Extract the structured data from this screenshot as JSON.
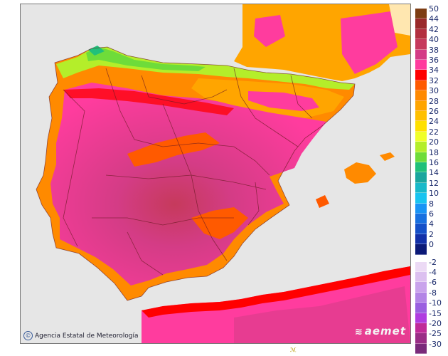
{
  "credit": {
    "text": "Agencia Estatal de Meteorología",
    "symbol": "©"
  },
  "brand": {
    "text": "aemet",
    "icon": "aemet-swirl-icon"
  },
  "sea_color": "#e6e6e6",
  "legend": {
    "warm": [
      {
        "label": "50",
        "color": "#7d3d13"
      },
      {
        "label": "44",
        "color": "#9a2a2a"
      },
      {
        "label": "42",
        "color": "#b3303f"
      },
      {
        "label": "40",
        "color": "#c63a5c"
      },
      {
        "label": "38",
        "color": "#d43c86"
      },
      {
        "label": "36",
        "color": "#ff3c9e"
      },
      {
        "label": "34",
        "color": "#ff0000"
      },
      {
        "label": "32",
        "color": "#ff5a00"
      },
      {
        "label": "30",
        "color": "#ff8a00"
      },
      {
        "label": "28",
        "color": "#ffa500"
      },
      {
        "label": "26",
        "color": "#ffc000"
      },
      {
        "label": "24",
        "color": "#ffe000"
      },
      {
        "label": "22",
        "color": "#f0ff2a"
      },
      {
        "label": "20",
        "color": "#b4ee2a"
      },
      {
        "label": "18",
        "color": "#6edc3a"
      },
      {
        "label": "16",
        "color": "#20c07a"
      },
      {
        "label": "14",
        "color": "#1aa69e"
      },
      {
        "label": "12",
        "color": "#19b9c9"
      },
      {
        "label": "10",
        "color": "#19c4f0"
      },
      {
        "label": "8",
        "color": "#1994f5"
      },
      {
        "label": "6",
        "color": "#1870e0"
      },
      {
        "label": "4",
        "color": "#1550c8"
      },
      {
        "label": "2",
        "color": "#1230a8"
      },
      {
        "label": "0",
        "color": "#0c1a78"
      }
    ],
    "cold": [
      {
        "label": "-2",
        "color": "#ecdaf5"
      },
      {
        "label": "-4",
        "color": "#dcc0f0"
      },
      {
        "label": "-6",
        "color": "#c9a3ec"
      },
      {
        "label": "-8",
        "color": "#b385e6"
      },
      {
        "label": "-10",
        "color": "#9a5fe0"
      },
      {
        "label": "-15",
        "color": "#b03ce0"
      },
      {
        "label": "-20",
        "color": "#c02a98"
      },
      {
        "label": "-25",
        "color": "#9a2d86"
      },
      {
        "label": "-30",
        "color": "#7a2a7a"
      }
    ]
  },
  "bottom_mark": "ℳ"
}
